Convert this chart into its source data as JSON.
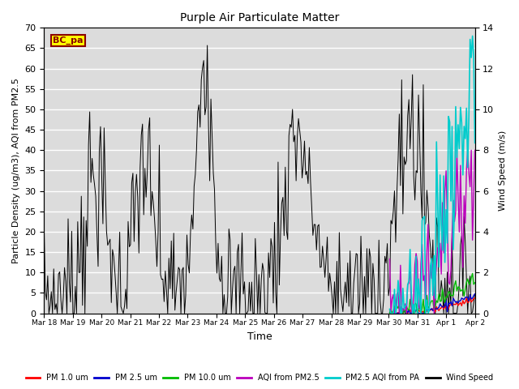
{
  "title": "Purple Air Particulate Matter",
  "xlabel": "Time",
  "ylabel_left": "Particle Density (ug/m3), AQI from PM2.5",
  "ylabel_right": "Wind Speed (m/s)",
  "ylim_left": [
    0,
    70
  ],
  "ylim_right": [
    0,
    14
  ],
  "yticks_left": [
    0,
    5,
    10,
    15,
    20,
    25,
    30,
    35,
    40,
    45,
    50,
    55,
    60,
    65,
    70
  ],
  "yticks_right": [
    0,
    2,
    4,
    6,
    8,
    10,
    12,
    14
  ],
  "background_color": "#dcdcdc",
  "figure_bg": "#ffffff",
  "station_label": "BC_pa",
  "station_label_color": "#8b0000",
  "station_label_bg": "#ffff00",
  "legend_entries": [
    "PM 1.0 um",
    "PM 2.5 um",
    "PM 10.0 um",
    "AQI from PM2.5",
    "PM2.5 AQI from PA",
    "Wind Speed"
  ],
  "legend_colors": [
    "#ff0000",
    "#0000cd",
    "#00bb00",
    "#bb00bb",
    "#00cccc",
    "#000000"
  ],
  "xtick_labels": [
    "Mar 18",
    "Mar 19",
    "Mar 20",
    "Mar 21",
    "Mar 22",
    "Mar 23",
    "Mar 24",
    "Mar 25",
    "Mar 26",
    "Mar 27",
    "Mar 28",
    "Mar 29",
    "Mar 30",
    "Mar 31",
    "Apr 1",
    "Apr 2"
  ],
  "n_points": 360,
  "seed": 7
}
